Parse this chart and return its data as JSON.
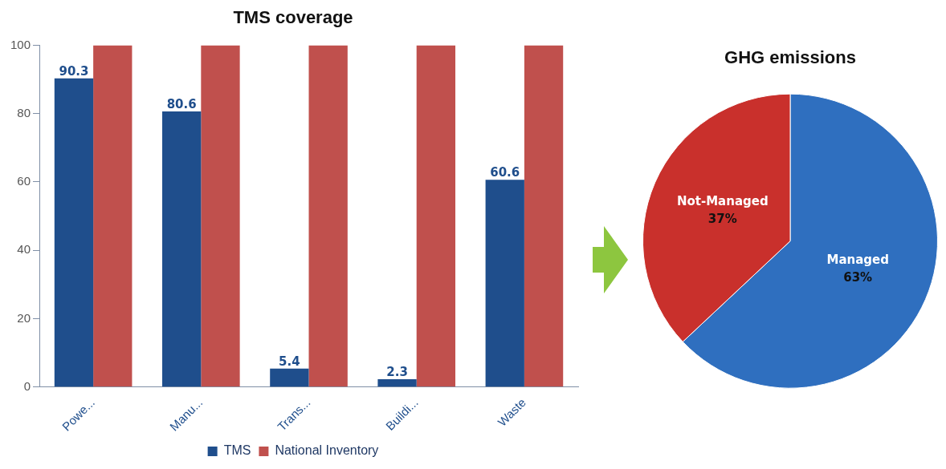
{
  "chart_data": [
    {
      "type": "bar",
      "title": "TMS coverage",
      "categories": [
        "Powe...",
        "Manu...",
        "Trans...",
        "Buildi...",
        "Waste"
      ],
      "series": [
        {
          "name": "TMS",
          "color": "#1f4e8c",
          "values": [
            90.3,
            80.6,
            5.4,
            2.3,
            60.6
          ],
          "value_labels": [
            "90.3",
            "80.6",
            "5.4",
            "2.3",
            "60.6"
          ]
        },
        {
          "name": "National Inventory",
          "color": "#c0504d",
          "values": [
            100,
            100,
            100,
            100,
            100
          ]
        }
      ],
      "ylim": [
        0,
        100
      ],
      "yticks": [
        0,
        20,
        40,
        60,
        80,
        100
      ],
      "grid": false,
      "legend": "bottom"
    },
    {
      "type": "pie",
      "title": "GHG emissions",
      "categories": [
        "Managed",
        "Not-Managed"
      ],
      "values": [
        63,
        37
      ],
      "colors": [
        "#2f6fbf",
        "#c9302c"
      ],
      "value_labels": [
        "63%",
        "37%"
      ],
      "legend": false
    }
  ]
}
